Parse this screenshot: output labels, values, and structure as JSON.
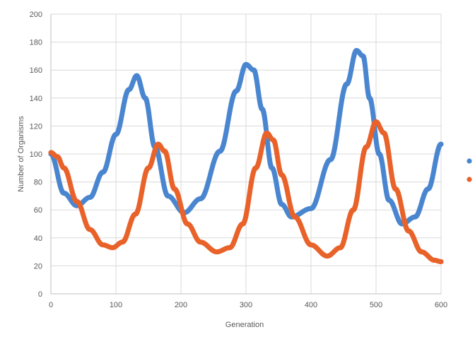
{
  "chart_data": {
    "type": "scatter",
    "title": "",
    "xlabel": "Generation",
    "ylabel": "Number of Organisms",
    "xlim": [
      0,
      600
    ],
    "ylim": [
      0,
      200
    ],
    "x_ticks": [
      0,
      100,
      200,
      300,
      400,
      500,
      600
    ],
    "y_ticks": [
      0,
      20,
      40,
      60,
      80,
      100,
      120,
      140,
      160,
      180,
      200
    ],
    "x_tick_labels": [
      "0",
      "100",
      "200",
      "300",
      "400",
      "500",
      "600"
    ],
    "y_tick_labels": [
      "0",
      "20",
      "40",
      "60",
      "80",
      "100",
      "120",
      "140",
      "160",
      "180",
      "200"
    ],
    "grid": true,
    "legend_position": "right",
    "marker": "circle",
    "series": [
      {
        "color": "#4a86d0",
        "points": [
          [
            0,
            100
          ],
          [
            20,
            72
          ],
          [
            40,
            63
          ],
          [
            60,
            69
          ],
          [
            80,
            87
          ],
          [
            100,
            114
          ],
          [
            120,
            146
          ],
          [
            132,
            156
          ],
          [
            145,
            140
          ],
          [
            160,
            105
          ],
          [
            180,
            70
          ],
          [
            205,
            58
          ],
          [
            230,
            68
          ],
          [
            260,
            102
          ],
          [
            285,
            145
          ],
          [
            300,
            164
          ],
          [
            312,
            160
          ],
          [
            325,
            132
          ],
          [
            340,
            90
          ],
          [
            355,
            64
          ],
          [
            370,
            55
          ],
          [
            400,
            61
          ],
          [
            430,
            96
          ],
          [
            455,
            150
          ],
          [
            470,
            174
          ],
          [
            480,
            170
          ],
          [
            490,
            140
          ],
          [
            505,
            100
          ],
          [
            520,
            67
          ],
          [
            540,
            50
          ],
          [
            560,
            55
          ],
          [
            580,
            75
          ],
          [
            600,
            107
          ]
        ]
      },
      {
        "color": "#e8622a",
        "points": [
          [
            0,
            101
          ],
          [
            10,
            98
          ],
          [
            20,
            90
          ],
          [
            40,
            66
          ],
          [
            60,
            46
          ],
          [
            80,
            35
          ],
          [
            95,
            33
          ],
          [
            110,
            37
          ],
          [
            130,
            57
          ],
          [
            150,
            90
          ],
          [
            165,
            107
          ],
          [
            175,
            102
          ],
          [
            190,
            75
          ],
          [
            210,
            50
          ],
          [
            230,
            37
          ],
          [
            255,
            30
          ],
          [
            275,
            33
          ],
          [
            295,
            50
          ],
          [
            315,
            90
          ],
          [
            332,
            115
          ],
          [
            342,
            110
          ],
          [
            355,
            85
          ],
          [
            375,
            55
          ],
          [
            400,
            35
          ],
          [
            425,
            27
          ],
          [
            445,
            33
          ],
          [
            465,
            60
          ],
          [
            485,
            105
          ],
          [
            500,
            123
          ],
          [
            512,
            115
          ],
          [
            530,
            75
          ],
          [
            550,
            45
          ],
          [
            570,
            30
          ],
          [
            590,
            24
          ],
          [
            600,
            23
          ]
        ]
      }
    ]
  }
}
